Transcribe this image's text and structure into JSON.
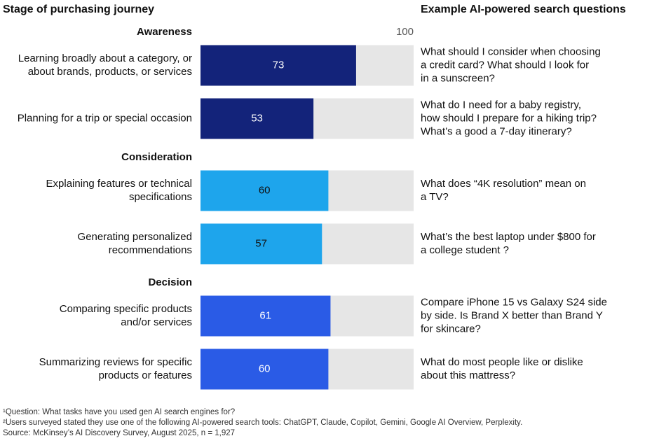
{
  "chart_data": {
    "type": "bar",
    "left_header": "Stage of purchasing journey",
    "right_header": "Example AI-powered search questions",
    "xlim": [
      0,
      100
    ],
    "xticks": [
      100
    ],
    "track_color": "#e6e6e6",
    "groups": [
      {
        "name": "Awareness",
        "color": "#13237a",
        "label_color": "#ffffff",
        "categories": [
          [
            "Learning broadly about a category, or",
            "about brands, products, or services"
          ],
          [
            "Planning for a trip or special occasion"
          ]
        ],
        "values": [
          73,
          53
        ],
        "examples": [
          [
            "What should I consider when choosing",
            "a credit card? What should I look for",
            "in a sunscreen?"
          ],
          [
            "What do I need for a baby registry,",
            "how should I prepare for a hiking trip?",
            "What’s a good a 7-day itinerary?"
          ]
        ]
      },
      {
        "name": "Consideration",
        "color": "#1ea5ec",
        "label_color": "#111111",
        "categories": [
          [
            "Explaining features or technical",
            "specifications"
          ],
          [
            "Generating personalized",
            "recommendations"
          ]
        ],
        "values": [
          60,
          57
        ],
        "examples": [
          [
            "What does “4K resolution” mean on",
            "a TV?"
          ],
          [
            "What’s the best laptop under $800 for",
            "a college student ?"
          ]
        ]
      },
      {
        "name": "Decision",
        "color": "#2a5be6",
        "label_color": "#ffffff",
        "categories": [
          [
            "Comparing specific products",
            "and/or services"
          ],
          [
            "Summarizing reviews for specific",
            "products or features"
          ]
        ],
        "values": [
          61,
          60
        ],
        "examples": [
          [
            "Compare iPhone 15 vs Galaxy S24 side",
            "by side. Is Brand X better than Brand Y",
            "for skincare?"
          ],
          [
            "What do most people like or dislike",
            "about this mattress?"
          ]
        ]
      }
    ],
    "footnotes": [
      "¹Question: What tasks have you used gen AI search engines for?",
      "²Users surveyed stated they use one of the following AI-powered search tools: ChatGPT, Claude, Copilot, Gemini, Google AI Overview, Perplexity.",
      " Source: McKinsey’s AI Discovery Survey, August 2025, n = 1,927"
    ]
  }
}
